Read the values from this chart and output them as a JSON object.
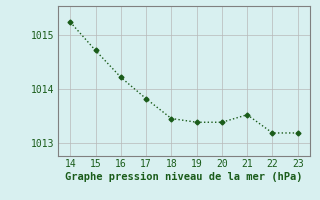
{
  "x": [
    14,
    15,
    16,
    17,
    18,
    19,
    20,
    21,
    22,
    23
  ],
  "y": [
    1015.25,
    1014.72,
    1014.22,
    1013.82,
    1013.45,
    1013.38,
    1013.38,
    1013.52,
    1013.18,
    1013.18
  ],
  "line_color": "#1a5c1a",
  "marker": "D",
  "marker_size": 2.5,
  "line_width": 1.0,
  "background_color": "#d8f0f0",
  "grid_color": "#b8b8b8",
  "xlabel": "Graphe pression niveau de la mer (hPa)",
  "xlabel_color": "#1a5c1a",
  "xlabel_fontsize": 7.5,
  "xlim": [
    13.5,
    23.5
  ],
  "ylim": [
    1012.75,
    1015.55
  ],
  "yticks": [
    1013,
    1014,
    1015
  ],
  "xticks": [
    14,
    15,
    16,
    17,
    18,
    19,
    20,
    21,
    22,
    23
  ],
  "tick_fontsize": 7,
  "tick_color": "#1a5c1a",
  "spine_color": "#808080"
}
